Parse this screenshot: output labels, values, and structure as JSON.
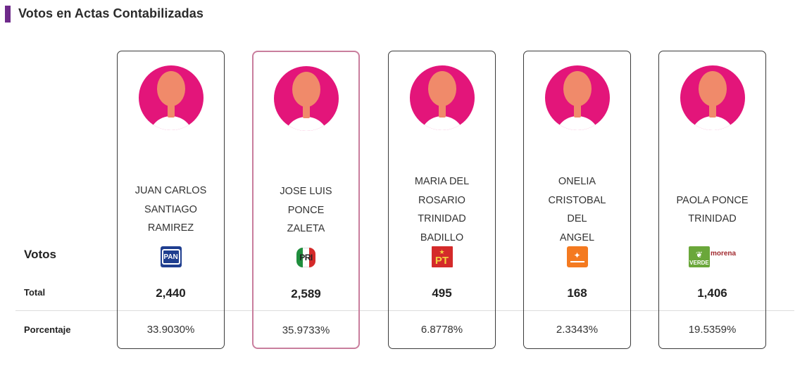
{
  "header": {
    "title": "Votos en Actas Contabilizadas"
  },
  "labels": {
    "votos": "Votos",
    "total": "Total",
    "porcentaje": "Porcentaje"
  },
  "candidates": [
    {
      "name_lines": [
        "JUAN CARLOS",
        "SANTIAGO",
        "RAMIREZ"
      ],
      "party": "PAN",
      "party_icon": "pan-logo",
      "total": "2,440",
      "percentage": "33.9030%",
      "selected": false
    },
    {
      "name_lines": [
        "JOSE LUIS",
        "PONCE ZALETA"
      ],
      "party": "PRI",
      "party_icon": "pri-logo",
      "total": "2,589",
      "percentage": "35.9733%",
      "selected": true
    },
    {
      "name_lines": [
        "MARIA DEL",
        "ROSARIO",
        "TRINIDAD",
        "BADILLO"
      ],
      "party": "PT",
      "party_icon": "pt-logo",
      "total": "495",
      "percentage": "6.8778%",
      "selected": false
    },
    {
      "name_lines": [
        "ONELIA",
        "CRISTOBAL DEL",
        "ANGEL"
      ],
      "party": "MC",
      "party_icon": "mc-logo",
      "total": "168",
      "percentage": "2.3343%",
      "selected": false
    },
    {
      "name_lines": [
        "PAOLA PONCE",
        "TRINIDAD"
      ],
      "party": "VERDE morena",
      "party_icon": "verde-morena-logo",
      "party_text": {
        "verde": "VERDE",
        "morena": "morena"
      },
      "total": "1,406",
      "percentage": "19.5359%",
      "selected": false
    }
  ],
  "colors": {
    "accent_bar": "#6e2a8a",
    "avatar_bg": "#e3157a",
    "selected_border": "#c97e9d"
  }
}
